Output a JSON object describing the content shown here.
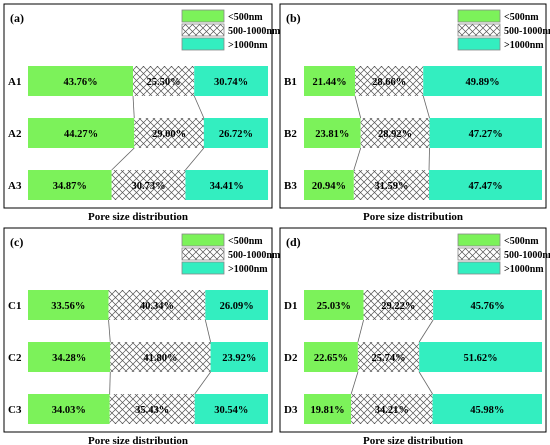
{
  "chart_data": [
    {
      "type": "bar",
      "stacked": true,
      "orientation": "horizontal",
      "panel_label": "(a)",
      "xlabel": "Pore size distribution",
      "categories": [
        "A1",
        "A2",
        "A3"
      ],
      "series": [
        {
          "name": "<500nm",
          "values": [
            43.76,
            44.27,
            34.87
          ],
          "labels": [
            "43.76%",
            "44.27%",
            "34.87%"
          ]
        },
        {
          "name": "500-1000nm",
          "values": [
            25.5,
            29.0,
            30.73
          ],
          "labels": [
            "25.50%",
            "29.00%",
            "30.73%"
          ]
        },
        {
          "name": ">1000nm",
          "values": [
            30.74,
            26.72,
            34.41
          ],
          "labels": [
            "30.74%",
            "26.72%",
            "34.41%"
          ]
        }
      ],
      "xlim": [
        0,
        100
      ]
    },
    {
      "type": "bar",
      "stacked": true,
      "orientation": "horizontal",
      "panel_label": "(b)",
      "xlabel": "Pore size distribution",
      "categories": [
        "B1",
        "B2",
        "B3"
      ],
      "series": [
        {
          "name": "<500nm",
          "values": [
            21.44,
            23.81,
            20.94
          ],
          "labels": [
            "21.44%",
            "23.81%",
            "20.94%"
          ]
        },
        {
          "name": "500-1000nm",
          "values": [
            28.66,
            28.92,
            31.59
          ],
          "labels": [
            "28.66%",
            "28.92%",
            "31.59%"
          ]
        },
        {
          "name": ">1000nm",
          "values": [
            49.89,
            47.27,
            47.47
          ],
          "labels": [
            "49.89%",
            "47.27%",
            "47.47%"
          ]
        }
      ],
      "xlim": [
        0,
        100
      ]
    },
    {
      "type": "bar",
      "stacked": true,
      "orientation": "horizontal",
      "panel_label": "(c)",
      "xlabel": "Pore size distribution",
      "categories": [
        "C1",
        "C2",
        "C3"
      ],
      "series": [
        {
          "name": "<500nm",
          "values": [
            33.56,
            34.28,
            34.03
          ],
          "labels": [
            "33.56%",
            "34.28%",
            "34.03%"
          ]
        },
        {
          "name": "500-1000nm",
          "values": [
            40.34,
            41.8,
            35.43
          ],
          "labels": [
            "40.34%",
            "41.80%",
            "35.43%"
          ]
        },
        {
          "name": ">1000nm",
          "values": [
            26.09,
            23.92,
            30.54
          ],
          "labels": [
            "26.09%",
            "23.92%",
            "30.54%"
          ]
        }
      ],
      "xlim": [
        0,
        100
      ]
    },
    {
      "type": "bar",
      "stacked": true,
      "orientation": "horizontal",
      "panel_label": "(d)",
      "xlabel": "Pore size distribution",
      "categories": [
        "D1",
        "D2",
        "D3"
      ],
      "series": [
        {
          "name": "<500nm",
          "values": [
            25.03,
            22.65,
            19.81
          ],
          "labels": [
            "25.03%",
            "22.65%",
            "19.81%"
          ]
        },
        {
          "name": "500-1000nm",
          "values": [
            29.22,
            25.74,
            34.21
          ],
          "labels": [
            "29.22%",
            "25.74%",
            "34.21%"
          ]
        },
        {
          "name": ">1000nm",
          "values": [
            45.76,
            51.62,
            45.98
          ],
          "labels": [
            "45.76%",
            "51.62%",
            "45.98%"
          ]
        }
      ],
      "xlim": [
        0,
        100
      ]
    }
  ],
  "legend": {
    "entries": [
      "<500nm",
      "500-1000nm",
      ">1000nm"
    ],
    "placement": "top-right"
  },
  "colors": {
    "small": "#7cf25a",
    "medium_fill": "#ffffff",
    "medium_hatch": "#555555",
    "large": "#33eec0",
    "frame": "#000000",
    "connector": "#666666"
  }
}
